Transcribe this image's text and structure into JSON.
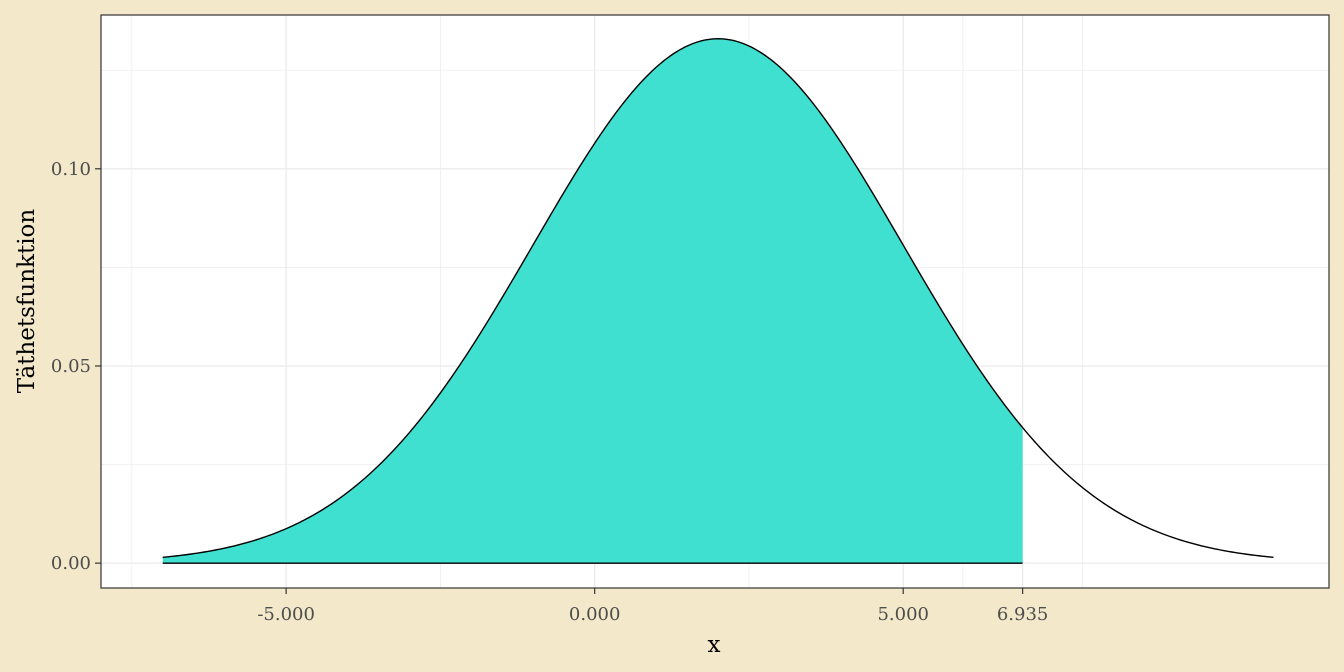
{
  "chart_data": {
    "type": "area",
    "title": "",
    "xlabel": "x",
    "ylabel": "Täthetsfunktion",
    "distribution": {
      "name": "normal",
      "mean": 2.0,
      "sd": 3.0
    },
    "x_range": [
      -7.0,
      11.0
    ],
    "shaded_interval": [
      -7.0,
      6.935
    ],
    "xlim": [
      -8.0,
      11.9
    ],
    "ylim": [
      -0.0063,
      0.139
    ],
    "x_ticks": [
      -5.0,
      0.0,
      5.0,
      6.935
    ],
    "x_tick_labels": [
      "-5.000",
      "0.000",
      "5.000",
      "6.935"
    ],
    "y_ticks": [
      0.0,
      0.05,
      0.1
    ],
    "y_tick_labels": [
      "0.00",
      "0.05",
      "0.10"
    ],
    "grid": true,
    "legend": "none",
    "colors": {
      "fill": "#40e0d0",
      "curve": "#000000",
      "panel_background": "#ffffff",
      "page_background": "#f3e9ca",
      "grid": "#ebebeb"
    }
  }
}
